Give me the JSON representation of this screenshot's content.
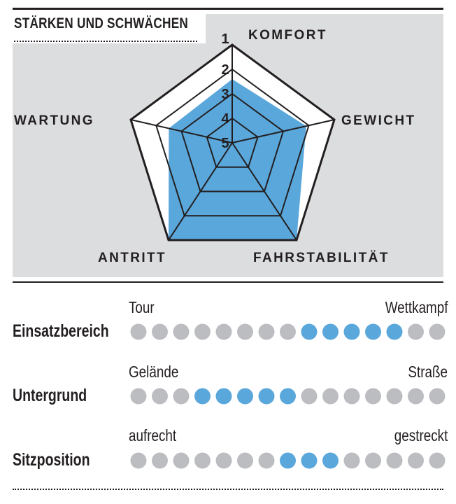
{
  "title": "STÄRKEN UND SCHWÄCHEN",
  "chart_data": [
    {
      "type": "radar",
      "axes": [
        "KOMFORT",
        "GEWICHT",
        "FAHRSTABILITÄT",
        "ANTRITT",
        "WARTUNG"
      ],
      "scale_labels": [
        "1",
        "2",
        "3",
        "4",
        "5"
      ],
      "range": [
        5,
        1
      ],
      "values": [
        2.4,
        2.1,
        1,
        1,
        2.5
      ],
      "fill_color": "#5aa7db"
    },
    {
      "type": "dot-scale",
      "dots_per_row": 15,
      "active_color": "#5aa7db",
      "inactive_color": "#bcbdc0",
      "rows": [
        {
          "label": "Einsatzbereich",
          "left": "Tour",
          "right": "Wettkampf",
          "active": [
            9,
            10,
            11,
            12,
            13
          ]
        },
        {
          "label": "Untergrund",
          "left": "Gelände",
          "right": "Straße",
          "active": [
            4,
            5,
            6,
            7,
            8
          ]
        },
        {
          "label": "Sitzposition",
          "left": "aufrecht",
          "right": "gestreckt",
          "active": [
            8,
            9,
            10
          ]
        }
      ]
    }
  ]
}
